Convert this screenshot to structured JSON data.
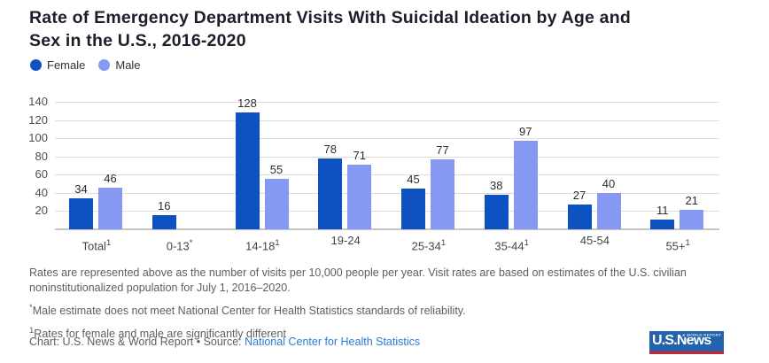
{
  "title": {
    "line1": "Rate of Emergency Department Visits With Suicidal Ideation by Age and",
    "line2": "Sex in the U.S., 2016-2020"
  },
  "legend": [
    {
      "label": "Female",
      "color": "#0e51c0"
    },
    {
      "label": "Male",
      "color": "#8598f2"
    }
  ],
  "chart_data": {
    "type": "bar",
    "categories": [
      {
        "label": "Total",
        "sup": "1"
      },
      {
        "label": "0-13",
        "sup": "*"
      },
      {
        "label": "14-18",
        "sup": "1"
      },
      {
        "label": "19-24",
        "sup": ""
      },
      {
        "label": "25-34",
        "sup": "1"
      },
      {
        "label": "35-44",
        "sup": "1"
      },
      {
        "label": "45-54",
        "sup": ""
      },
      {
        "label": "55+",
        "sup": "1"
      }
    ],
    "series": [
      {
        "name": "Female",
        "color": "#0e51c0",
        "values": [
          34,
          16,
          128,
          78,
          45,
          38,
          27,
          11
        ]
      },
      {
        "name": "Male",
        "color": "#8598f2",
        "values": [
          46,
          null,
          55,
          71,
          77,
          97,
          40,
          21
        ]
      }
    ],
    "ylabel": "",
    "xlabel": "",
    "ylim": [
      0,
      140
    ],
    "yticks": [
      20,
      40,
      60,
      80,
      100,
      120,
      140
    ],
    "grid": "horizontal",
    "legend_position": "top-left",
    "unit_note": "visits per 10,000 people per year"
  },
  "notes": {
    "methodology": "Rates are represented above as the number of visits per 10,000 people per year. Visit rates are based on estimates of the U.S. civilian noninstitutionalized population for July 1, 2016–2020.",
    "asterisk_mark": "*",
    "asterisk_text": "Male estimate does not meet National Center for Health Statistics standards of reliability.",
    "one_mark": "1",
    "one_text": "Rates for female and male are significantly different"
  },
  "credit": {
    "prefix": "Chart: U.S. News & World Report • Source: ",
    "source_link": "National Center for Health Statistics"
  },
  "logo": {
    "text": "U.S.News",
    "subtext": "& WORLD REPORT"
  }
}
